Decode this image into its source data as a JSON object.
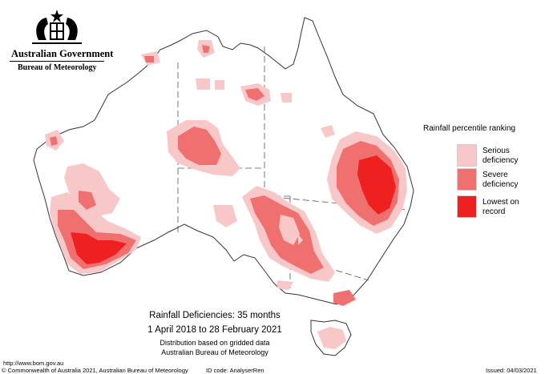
{
  "header": {
    "government": "Australian Government",
    "bureau": "Bureau of Meteorology"
  },
  "legend": {
    "title": "Rainfall percentile ranking",
    "items": [
      {
        "label_line1": "Serious",
        "label_line2": "deficiency",
        "color": "#f8c8c8"
      },
      {
        "label_line1": "Severe",
        "label_line2": "deficiency",
        "color": "#f07070"
      },
      {
        "label_line1": "Lowest on",
        "label_line2": "record",
        "color": "#ee2020"
      }
    ]
  },
  "caption": {
    "title": "Rainfall Deficiencies: 35 months",
    "period": "1 April 2018 to 28 February 2021",
    "note1": "Distribution based on gridded data",
    "note2": "Australian Bureau of Meteorology"
  },
  "footer": {
    "url": "http://www.bom.gov.au",
    "copyright": "© Commonwealth of Australia 2021, Australian Bureau of Meteorology",
    "id_code": "ID code: AnalyserRen",
    "issued": "Issued: 04/03/2021"
  },
  "icons": {
    "crest": "commonwealth-coat-of-arms-icon"
  }
}
